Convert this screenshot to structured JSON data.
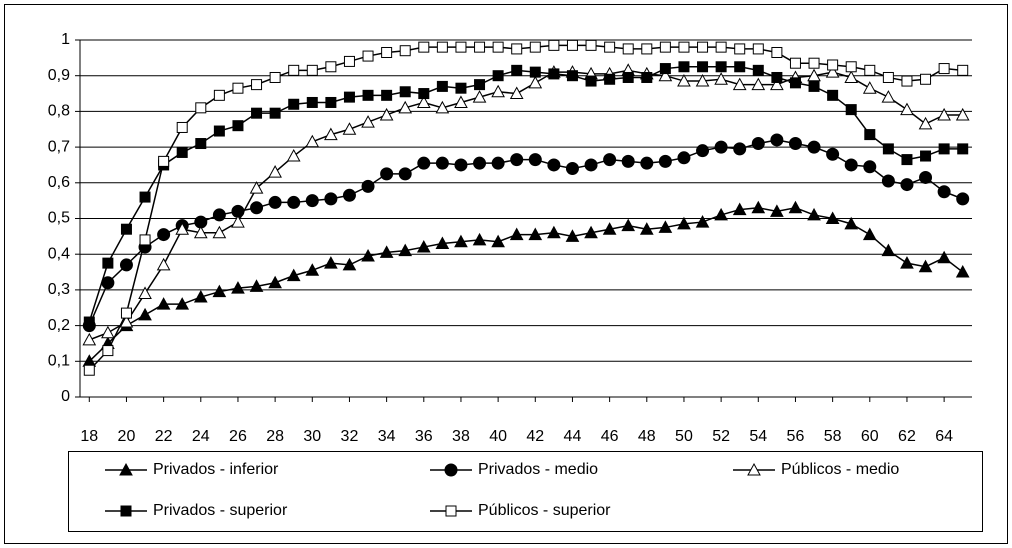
{
  "chart_data": {
    "type": "line",
    "x": [
      18,
      19,
      20,
      21,
      22,
      23,
      24,
      25,
      26,
      27,
      28,
      29,
      30,
      31,
      32,
      33,
      34,
      35,
      36,
      37,
      38,
      39,
      40,
      41,
      42,
      43,
      44,
      45,
      46,
      47,
      48,
      49,
      50,
      51,
      52,
      53,
      54,
      55,
      56,
      57,
      58,
      59,
      60,
      61,
      62,
      63,
      64,
      65
    ],
    "xlim": [
      17.5,
      65.5
    ],
    "xticks": [
      18,
      20,
      22,
      24,
      26,
      28,
      30,
      32,
      34,
      36,
      38,
      40,
      42,
      44,
      46,
      48,
      50,
      52,
      54,
      56,
      58,
      60,
      62,
      64
    ],
    "ylim": [
      0,
      1
    ],
    "yticks": [
      0,
      {
        "value": 0.1,
        "label": "0,1"
      },
      {
        "value": 0.2,
        "label": "0,2"
      },
      {
        "value": 0.3,
        "label": "0,3"
      },
      {
        "value": 0.4,
        "label": "0,4"
      },
      {
        "value": 0.5,
        "label": "0,5"
      },
      {
        "value": 0.6,
        "label": "0,6"
      },
      {
        "value": 0.7,
        "label": "0,7"
      },
      {
        "value": 0.8,
        "label": "0,8"
      },
      {
        "value": 0.9,
        "label": "0,9"
      },
      1
    ],
    "grid": true,
    "series": [
      {
        "name": "Privados - inferior",
        "color": "#000000",
        "marker": "triangle-filled",
        "values": [
          0.1,
          0.15,
          0.2,
          0.23,
          0.26,
          0.26,
          0.28,
          0.295,
          0.305,
          0.31,
          0.32,
          0.34,
          0.355,
          0.375,
          0.37,
          0.395,
          0.405,
          0.41,
          0.42,
          0.43,
          0.435,
          0.44,
          0.435,
          0.455,
          0.455,
          0.46,
          0.45,
          0.46,
          0.47,
          0.48,
          0.47,
          0.475,
          0.485,
          0.49,
          0.51,
          0.525,
          0.53,
          0.52,
          0.53,
          0.51,
          0.5,
          0.485,
          0.455,
          0.41,
          0.375,
          0.365,
          0.39,
          0.35
        ]
      },
      {
        "name": "Privados - medio",
        "color": "#000000",
        "marker": "circle-filled",
        "values": [
          0.2,
          0.32,
          0.37,
          0.42,
          0.455,
          0.48,
          0.49,
          0.51,
          0.52,
          0.53,
          0.545,
          0.545,
          0.55,
          0.555,
          0.565,
          0.59,
          0.625,
          0.625,
          0.655,
          0.655,
          0.65,
          0.655,
          0.655,
          0.665,
          0.665,
          0.65,
          0.64,
          0.65,
          0.665,
          0.66,
          0.655,
          0.66,
          0.67,
          0.69,
          0.7,
          0.695,
          0.71,
          0.72,
          0.71,
          0.7,
          0.68,
          0.65,
          0.645,
          0.605,
          0.595,
          0.615,
          0.575,
          0.555
        ]
      },
      {
        "name": "Públicos - medio",
        "color": "#000000",
        "marker": "triangle-open",
        "values": [
          0.16,
          0.18,
          0.21,
          0.29,
          0.37,
          0.47,
          0.46,
          0.46,
          0.49,
          0.585,
          0.63,
          0.675,
          0.715,
          0.735,
          0.75,
          0.77,
          0.79,
          0.81,
          0.825,
          0.81,
          0.825,
          0.84,
          0.855,
          0.85,
          0.88,
          0.91,
          0.91,
          0.905,
          0.905,
          0.915,
          0.905,
          0.9,
          0.885,
          0.885,
          0.89,
          0.875,
          0.875,
          0.875,
          0.895,
          0.9,
          0.91,
          0.895,
          0.865,
          0.84,
          0.805,
          0.765,
          0.79,
          0.79
        ]
      },
      {
        "name": "Privados - superior",
        "color": "#000000",
        "marker": "square-filled",
        "values": [
          0.21,
          0.375,
          0.47,
          0.56,
          0.65,
          0.685,
          0.71,
          0.745,
          0.76,
          0.795,
          0.795,
          0.82,
          0.825,
          0.825,
          0.84,
          0.845,
          0.845,
          0.855,
          0.85,
          0.87,
          0.865,
          0.875,
          0.9,
          0.915,
          0.91,
          0.905,
          0.9,
          0.885,
          0.89,
          0.895,
          0.895,
          0.92,
          0.925,
          0.925,
          0.925,
          0.925,
          0.915,
          0.895,
          0.88,
          0.87,
          0.845,
          0.805,
          0.735,
          0.695,
          0.665,
          0.675,
          0.695,
          0.695
        ]
      },
      {
        "name": "Públicos - superior",
        "color": "#000000",
        "marker": "square-open",
        "values": [
          0.075,
          0.13,
          0.235,
          0.44,
          0.66,
          0.755,
          0.81,
          0.845,
          0.865,
          0.875,
          0.895,
          0.915,
          0.915,
          0.925,
          0.94,
          0.955,
          0.965,
          0.97,
          0.98,
          0.98,
          0.98,
          0.98,
          0.98,
          0.975,
          0.98,
          0.985,
          0.985,
          0.985,
          0.98,
          0.975,
          0.975,
          0.98,
          0.98,
          0.98,
          0.98,
          0.975,
          0.975,
          0.965,
          0.935,
          0.935,
          0.93,
          0.925,
          0.915,
          0.895,
          0.885,
          0.89,
          0.92,
          0.915
        ]
      }
    ]
  }
}
